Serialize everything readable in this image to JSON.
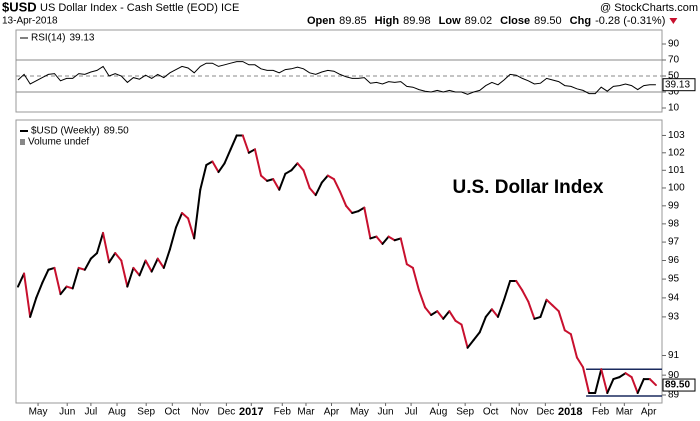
{
  "header": {
    "symbol": "$USD",
    "name": "US Dollar Index - Cash Settle (EOD) ICE",
    "source": "@ StockCharts.com",
    "date": "13-Apr-2018",
    "quote": [
      {
        "label": "Open",
        "value": "89.85"
      },
      {
        "label": "High",
        "value": "89.98"
      },
      {
        "label": "Low",
        "value": "89.02"
      },
      {
        "label": "Close",
        "value": "89.50"
      },
      {
        "label": "Chg",
        "value": "-0.28 (-0.31%)"
      }
    ]
  },
  "chart_data": [
    {
      "type": "line",
      "title": "RSI(14)",
      "last_label": "39.13",
      "color": "#000000",
      "level_color": "#888888",
      "values": [
        45,
        52,
        40,
        44,
        48,
        52,
        53,
        44,
        47,
        47,
        53,
        52,
        55,
        57,
        62,
        50,
        53,
        50,
        42,
        48,
        46,
        51,
        47,
        52,
        48,
        54,
        58,
        62,
        60,
        54,
        62,
        66,
        66,
        62,
        64,
        66,
        68,
        68,
        64,
        64,
        59,
        57,
        57,
        54,
        58,
        59,
        61,
        59,
        54,
        52,
        55,
        57,
        56,
        52,
        49,
        47,
        47,
        48,
        41,
        42,
        40,
        43,
        42,
        43,
        37,
        36,
        33,
        31,
        30,
        32,
        30,
        32,
        30,
        30,
        27,
        30,
        32,
        38,
        42,
        39,
        45,
        52,
        51,
        47,
        44,
        40,
        41,
        47,
        45,
        43,
        38,
        37,
        34,
        32,
        28,
        28,
        36,
        31,
        37,
        38,
        40,
        38,
        33,
        38,
        39,
        39.13
      ],
      "levels": [
        70,
        50,
        30
      ],
      "xlim": [
        0,
        106
      ],
      "ylim": [
        5,
        107.5
      ],
      "yticks": [
        90,
        70,
        50,
        30,
        10
      ]
    },
    {
      "type": "line",
      "log_scale": true,
      "grid": false,
      "subtitle": "Volume undef",
      "annotation": "U.S. Dollar Index",
      "annotation_color": "#2e5a1c",
      "series": [
        {
          "name": "$USD (Weekly)",
          "last_label": "89.50",
          "up_color": "#000000",
          "down_color": "#c8102e",
          "values": [
            94.6,
            95.3,
            93.0,
            94.0,
            94.8,
            95.5,
            95.6,
            94.2,
            94.6,
            94.5,
            95.6,
            95.5,
            96.1,
            96.4,
            97.5,
            95.9,
            96.4,
            96.0,
            94.6,
            95.6,
            95.2,
            96.0,
            95.4,
            96.1,
            95.6,
            96.6,
            97.8,
            98.6,
            98.3,
            97.2,
            99.9,
            101.3,
            101.5,
            100.9,
            101.4,
            102.2,
            103.0,
            103.0,
            102.0,
            102.2,
            100.7,
            100.4,
            100.5,
            99.9,
            100.8,
            101.0,
            101.4,
            101.0,
            100.0,
            99.6,
            100.3,
            100.7,
            100.5,
            99.8,
            99.0,
            98.6,
            98.7,
            98.9,
            97.2,
            97.3,
            96.9,
            97.3,
            97.1,
            97.2,
            95.8,
            95.6,
            94.4,
            93.5,
            93.1,
            93.3,
            92.9,
            93.3,
            92.8,
            92.6,
            91.4,
            91.8,
            92.2,
            93.0,
            93.4,
            93.0,
            93.9,
            94.9,
            94.9,
            94.4,
            93.8,
            92.9,
            93.0,
            93.9,
            93.6,
            93.3,
            92.3,
            92.1,
            90.9,
            90.4,
            89.1,
            89.1,
            90.3,
            89.1,
            89.8,
            89.9,
            90.1,
            89.9,
            89.1,
            89.8,
            89.8,
            89.5
          ]
        }
      ],
      "channel": {
        "start": 94,
        "upper": 90.3,
        "lower": 88.95,
        "color": "#1a2a5e"
      },
      "xlim": [
        0,
        106
      ],
      "ylim": [
        88.6,
        103.9
      ],
      "yticks": [
        103,
        102,
        101,
        100,
        99,
        98,
        97,
        96,
        95,
        94,
        93,
        91,
        90,
        89
      ],
      "xticks": [
        {
          "value": 3.3,
          "label": "May"
        },
        {
          "value": 8.1,
          "label": "Jun"
        },
        {
          "value": 12,
          "label": "Jul"
        },
        {
          "value": 16.3,
          "label": "Aug"
        },
        {
          "value": 21.1,
          "label": "Sep"
        },
        {
          "value": 25.4,
          "label": "Oct"
        },
        {
          "value": 30,
          "label": "Nov"
        },
        {
          "value": 34.3,
          "label": "Dec"
        },
        {
          "value": 38.4,
          "label": "2017"
        },
        {
          "value": 43.5,
          "label": "Feb"
        },
        {
          "value": 47.4,
          "label": "Mar"
        },
        {
          "value": 51.6,
          "label": "Apr"
        },
        {
          "value": 56.2,
          "label": "May"
        },
        {
          "value": 60.5,
          "label": "Jun"
        },
        {
          "value": 64.7,
          "label": "Jul"
        },
        {
          "value": 69.2,
          "label": "Aug"
        },
        {
          "value": 73.6,
          "label": "Sep"
        },
        {
          "value": 77.8,
          "label": "Oct"
        },
        {
          "value": 82.5,
          "label": "Nov"
        },
        {
          "value": 86.8,
          "label": "Dec"
        },
        {
          "value": 90.9,
          "label": "2018"
        },
        {
          "value": 95.9,
          "label": "Feb"
        },
        {
          "value": 99.8,
          "label": "Mar"
        },
        {
          "value": 103.8,
          "label": "Apr"
        }
      ]
    }
  ]
}
